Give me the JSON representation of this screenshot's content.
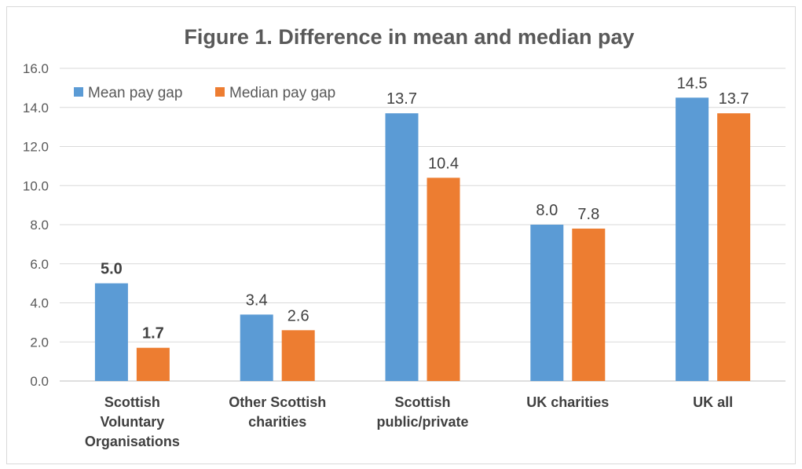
{
  "chart_data": {
    "type": "bar",
    "title": "Figure 1. Difference in mean and median pay",
    "categories": [
      [
        "Scottish",
        "Voluntary",
        "Organisations"
      ],
      [
        "Other Scottish",
        "charities"
      ],
      [
        "Scottish",
        "public/private"
      ],
      [
        "UK charities"
      ],
      [
        "UK all"
      ]
    ],
    "series": [
      {
        "name": "Mean pay gap",
        "color": "#5b9bd5",
        "values": [
          5.0,
          3.4,
          13.7,
          8.0,
          14.5
        ],
        "labels": [
          "5.0",
          "3.4",
          "13.7",
          "8.0",
          "14.5"
        ],
        "bold_labels": [
          true,
          false,
          false,
          false,
          false
        ]
      },
      {
        "name": "Median pay gap",
        "color": "#ed7d31",
        "values": [
          1.7,
          2.6,
          10.4,
          7.8,
          13.7
        ],
        "labels": [
          "1.7",
          "2.6",
          "10.4",
          "7.8",
          "13.7"
        ],
        "bold_labels": [
          true,
          false,
          false,
          false,
          false
        ]
      }
    ],
    "ylim": [
      0,
      16
    ],
    "yticks": [
      "0.0",
      "2.0",
      "4.0",
      "6.0",
      "8.0",
      "10.0",
      "12.0",
      "14.0",
      "16.0"
    ],
    "grid": true,
    "legend_position": "top-left"
  }
}
